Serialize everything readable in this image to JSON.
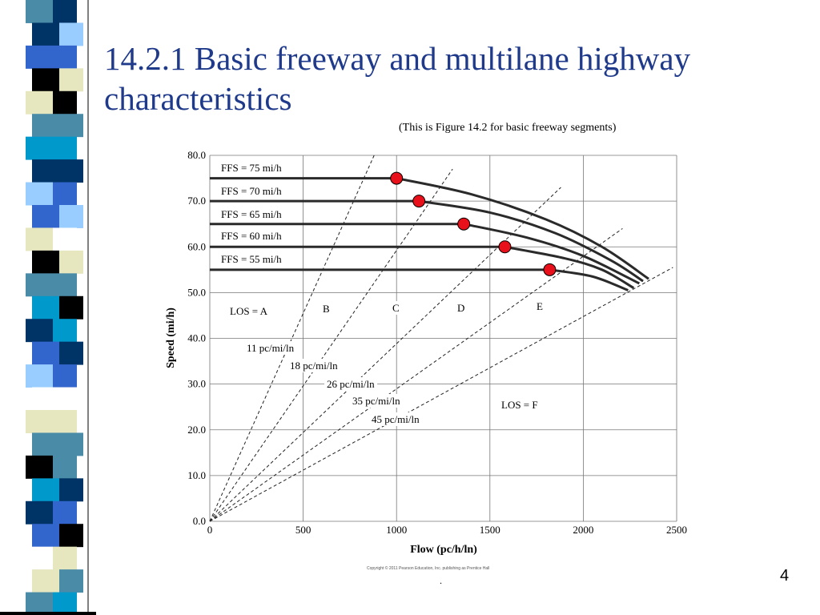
{
  "slide": {
    "title": "14.2.1 Basic freeway and multilane highway characteristics",
    "caption": "(This is Figure 14.2 for basic freeway segments)",
    "copyright": "Copyright © 2011 Pearson Education, Inc. publishing as Prentice Hall",
    "dot": ".",
    "page_number": "4"
  },
  "sidebar_palette": [
    "#ffffff",
    "#4a8ba8",
    "#003366",
    "#3366cc",
    "#000000",
    "#e6e6bf",
    "#0099cc",
    "#99ccff"
  ],
  "chart_data": {
    "type": "line",
    "xlabel": "Flow (pc/h/ln)",
    "ylabel": "Speed (mi/h)",
    "xlim": [
      0,
      2500
    ],
    "ylim": [
      0,
      80
    ],
    "xticks": [
      "0",
      "500",
      "1000",
      "1500",
      "2000",
      "2500"
    ],
    "yticks": [
      "0.0",
      "10.0",
      "20.0",
      "30.0",
      "40.0",
      "50.0",
      "60.0",
      "70.0",
      "80.0"
    ],
    "grid": true,
    "series": [
      {
        "name": "FFS = 75 mi/h",
        "values": [
          [
            0,
            75
          ],
          [
            1000,
            75
          ],
          [
            1400,
            71.5
          ],
          [
            1800,
            66
          ],
          [
            2100,
            60
          ],
          [
            2350,
            53
          ]
        ],
        "breakpoint": [
          1000,
          75
        ]
      },
      {
        "name": "FFS = 70 mi/h",
        "values": [
          [
            0,
            70
          ],
          [
            1120,
            70
          ],
          [
            1500,
            67.5
          ],
          [
            1850,
            63
          ],
          [
            2150,
            57
          ],
          [
            2320,
            52.5
          ]
        ],
        "breakpoint": [
          1120,
          70
        ]
      },
      {
        "name": "FFS = 65 mi/h",
        "values": [
          [
            0,
            65
          ],
          [
            1360,
            65
          ],
          [
            1700,
            62
          ],
          [
            2000,
            58
          ],
          [
            2300,
            52
          ]
        ],
        "breakpoint": [
          1360,
          65
        ]
      },
      {
        "name": "FFS = 60 mi/h",
        "values": [
          [
            0,
            60
          ],
          [
            1580,
            60
          ],
          [
            1900,
            57.5
          ],
          [
            2100,
            55
          ],
          [
            2270,
            51
          ]
        ],
        "breakpoint": [
          1580,
          60
        ]
      },
      {
        "name": "FFS = 55 mi/h",
        "values": [
          [
            0,
            55
          ],
          [
            1820,
            55
          ],
          [
            2050,
            53.5
          ],
          [
            2240,
            50.5
          ]
        ],
        "breakpoint": [
          1820,
          55
        ]
      }
    ],
    "density_lines": [
      {
        "label": "11 pc/mi/ln",
        "end": [
          880,
          80
        ]
      },
      {
        "label": "18 pc/mi/ln",
        "end": [
          1300,
          77
        ]
      },
      {
        "label": "26 pc/mi/ln",
        "end": [
          1880,
          73
        ]
      },
      {
        "label": "35 pc/mi/ln",
        "end": [
          2210,
          64
        ]
      },
      {
        "label": "45 pc/mi/ln",
        "end": [
          2480,
          55.5
        ]
      }
    ],
    "los_labels": [
      "LOS = A",
      "B",
      "C",
      "D",
      "E",
      "LOS = F"
    ],
    "annotations": [
      "FFS = 75 mi/h",
      "FFS = 70 mi/h",
      "FFS = 65 mi/h",
      "FFS = 60 mi/h",
      "FFS = 55 mi/h",
      "11 pc/mi/ln",
      "18 pc/mi/ln",
      "26 pc/mi/ln",
      "35 pc/mi/ln",
      "45 pc/mi/ln",
      "LOS = A",
      "B",
      "C",
      "D",
      "E",
      "LOS = F"
    ],
    "marker_color": "#e8101a"
  }
}
